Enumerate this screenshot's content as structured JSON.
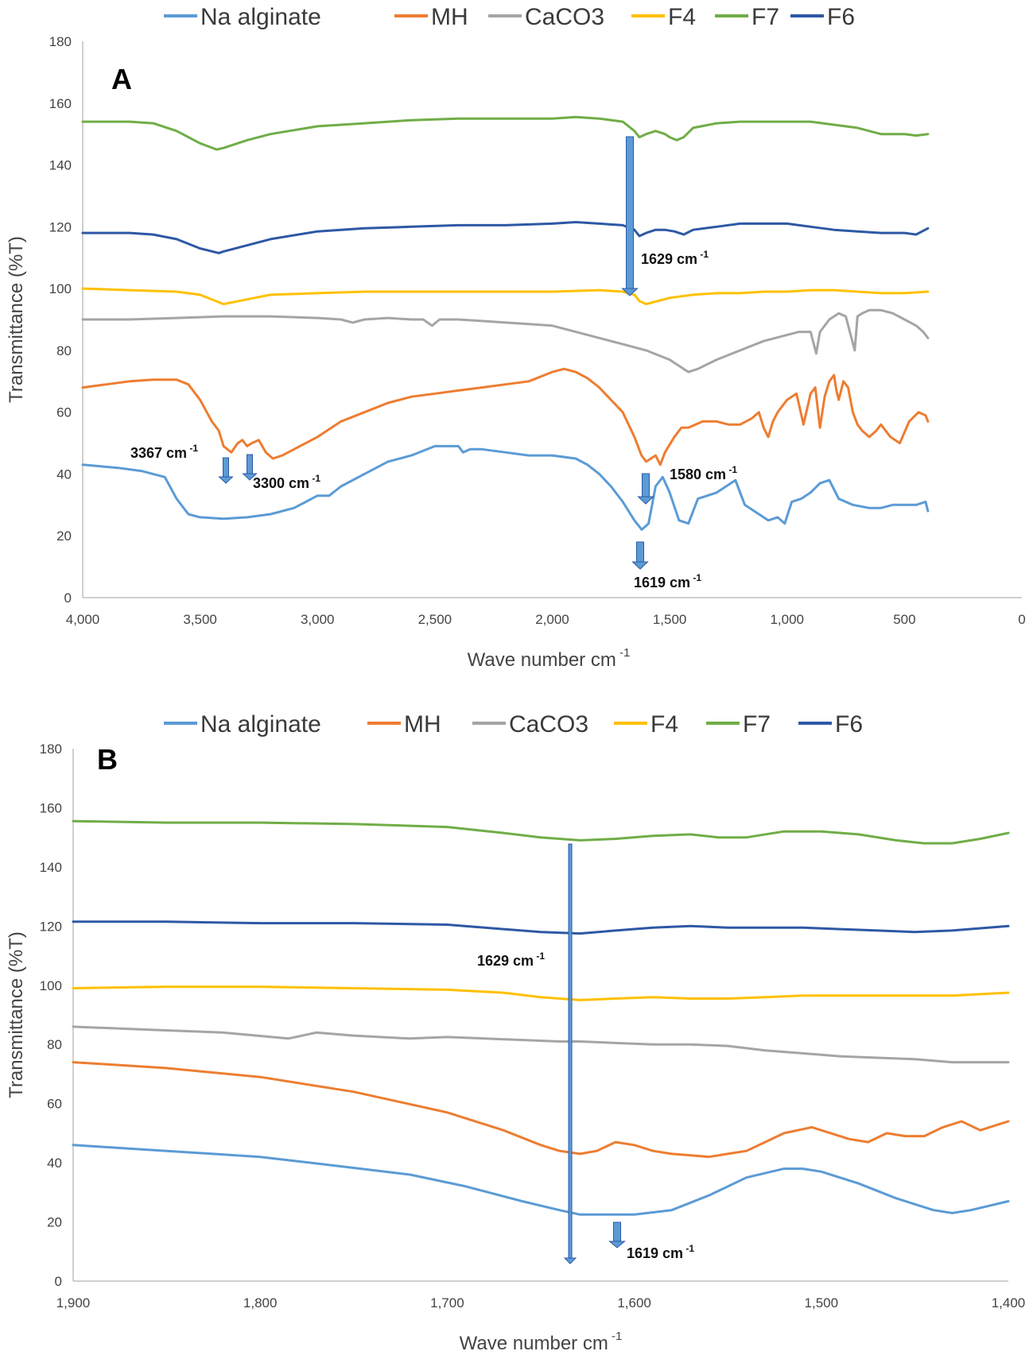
{
  "chart_data": [
    {
      "type": "line",
      "panel": "A",
      "xlabel": "Wave number cm",
      "xlabel_sup": "-1",
      "ylabel": "Transmittance  (%T)",
      "xlim": [
        4000,
        0
      ],
      "ylim": [
        0,
        180
      ],
      "xticks": [
        4000,
        3500,
        3000,
        2500,
        2000,
        1500,
        1000,
        500,
        0
      ],
      "xtick_labels": [
        "4,000",
        "3,500",
        "3,000",
        "2,500",
        "2,000",
        "1,500",
        "1,000",
        "500",
        "0"
      ],
      "yticks": [
        0,
        20,
        40,
        60,
        80,
        100,
        120,
        140,
        160,
        180
      ],
      "ytick_labels": [
        "0",
        "20",
        "40",
        "60",
        "80",
        "100",
        "120",
        "140",
        "160",
        "180"
      ],
      "legend_position": "top",
      "series": [
        {
          "name": "Na alginate",
          "color": "#5b9bd5",
          "x": [
            4000,
            3850,
            3750,
            3650,
            3600,
            3550,
            3500,
            3400,
            3300,
            3200,
            3100,
            3000,
            2950,
            2900,
            2800,
            2700,
            2600,
            2500,
            2400,
            2380,
            2350,
            2300,
            2200,
            2100,
            2000,
            1900,
            1850,
            1800,
            1750,
            1700,
            1650,
            1619,
            1590,
            1560,
            1530,
            1500,
            1460,
            1420,
            1380,
            1340,
            1300,
            1260,
            1220,
            1180,
            1120,
            1080,
            1040,
            1010,
            980,
            940,
            900,
            860,
            820,
            780,
            720,
            650,
            600,
            550,
            500,
            450,
            410,
            400
          ],
          "y": [
            43,
            42,
            41,
            39,
            32,
            27,
            26,
            25.5,
            26,
            27,
            29,
            33,
            33,
            36,
            40,
            44,
            46,
            49,
            49,
            47,
            48,
            48,
            47,
            46,
            46,
            45,
            43,
            40,
            36,
            31,
            25,
            22,
            24,
            36,
            39,
            34,
            25,
            24,
            32,
            33,
            34,
            36,
            38,
            30,
            27,
            25,
            26,
            24,
            31,
            32,
            34,
            37,
            38,
            32,
            30,
            29,
            29,
            30,
            30,
            30,
            31,
            28
          ]
        },
        {
          "name": "MH",
          "color": "#ed7d31",
          "x": [
            4000,
            3900,
            3800,
            3700,
            3600,
            3550,
            3500,
            3450,
            3420,
            3400,
            3367,
            3340,
            3320,
            3300,
            3280,
            3250,
            3220,
            3190,
            3150,
            3100,
            3000,
            2900,
            2800,
            2700,
            2600,
            2500,
            2400,
            2300,
            2200,
            2100,
            2000,
            1950,
            1900,
            1850,
            1800,
            1750,
            1700,
            1650,
            1620,
            1600,
            1580,
            1560,
            1540,
            1520,
            1480,
            1450,
            1420,
            1390,
            1360,
            1300,
            1250,
            1200,
            1150,
            1120,
            1100,
            1080,
            1060,
            1040,
            1020,
            1000,
            960,
            930,
            900,
            880,
            860,
            840,
            820,
            800,
            790,
            780,
            760,
            740,
            720,
            700,
            680,
            650,
            620,
            600,
            560,
            520,
            480,
            440,
            410,
            400
          ],
          "y": [
            68,
            69,
            70,
            70.5,
            70.5,
            69,
            64,
            57,
            54,
            49,
            47,
            50,
            51,
            49,
            50,
            51,
            47,
            45,
            46,
            48,
            52,
            57,
            60,
            63,
            65,
            66,
            67,
            68,
            69,
            70,
            73,
            74,
            73,
            71,
            68,
            64,
            60,
            52,
            46,
            44,
            45,
            46,
            43,
            47,
            52,
            55,
            55,
            56,
            57,
            57,
            56,
            56,
            58,
            60,
            55,
            52,
            57,
            60,
            62,
            64,
            66,
            56,
            66,
            68,
            55,
            65,
            70,
            72,
            67,
            64,
            70,
            68,
            60,
            56,
            54,
            52,
            54,
            56,
            52,
            50,
            57,
            60,
            59,
            57
          ]
        },
        {
          "name": "CaCO3",
          "color": "#a5a5a5",
          "x": [
            4000,
            3800,
            3600,
            3400,
            3200,
            3000,
            2900,
            2850,
            2800,
            2700,
            2600,
            2550,
            2512,
            2480,
            2400,
            2300,
            2200,
            2100,
            2000,
            1900,
            1800,
            1700,
            1600,
            1500,
            1420,
            1380,
            1300,
            1200,
            1100,
            1000,
            950,
            900,
            876,
            860,
            820,
            780,
            750,
            712,
            700,
            680,
            650,
            600,
            550,
            500,
            450,
            420,
            400
          ],
          "y": [
            90,
            90,
            90.5,
            91,
            91,
            90.5,
            90,
            89,
            90,
            90.5,
            90,
            90,
            88,
            90,
            90,
            89.5,
            89,
            88.5,
            88,
            86,
            84,
            82,
            80,
            77,
            73,
            74,
            77,
            80,
            83,
            85,
            86,
            86,
            79,
            86,
            90,
            92,
            91,
            80,
            91,
            92,
            93,
            93,
            92,
            90,
            88,
            86,
            84
          ]
        },
        {
          "name": "F4",
          "color": "#ffc000",
          "x": [
            4000,
            3800,
            3600,
            3500,
            3400,
            3300,
            3200,
            3000,
            2800,
            2600,
            2400,
            2200,
            2000,
            1800,
            1700,
            1650,
            1629,
            1600,
            1550,
            1500,
            1400,
            1300,
            1200,
            1100,
            1000,
            900,
            800,
            700,
            600,
            500,
            400
          ],
          "y": [
            100,
            99.5,
            99,
            98,
            95,
            96.5,
            98,
            98.5,
            99,
            99,
            99,
            99,
            99,
            99.5,
            99,
            98,
            96,
            95,
            96,
            97,
            98,
            98.5,
            98.5,
            99,
            99,
            99.5,
            99.5,
            99,
            98.5,
            98.5,
            99
          ]
        },
        {
          "name": "F7",
          "color": "#70ad47",
          "x": [
            4000,
            3800,
            3700,
            3600,
            3500,
            3430,
            3400,
            3300,
            3200,
            3000,
            2800,
            2600,
            2400,
            2200,
            2000,
            1900,
            1800,
            1700,
            1650,
            1629,
            1600,
            1560,
            1520,
            1500,
            1470,
            1440,
            1400,
            1300,
            1200,
            1100,
            1000,
            900,
            800,
            700,
            600,
            500,
            450,
            400
          ],
          "y": [
            154,
            154,
            153.5,
            151,
            147,
            145,
            145.5,
            148,
            150,
            152.5,
            153.5,
            154.5,
            155,
            155,
            155,
            155.5,
            155,
            154,
            151,
            149,
            150,
            151,
            150,
            149,
            148,
            149,
            152,
            153.5,
            154,
            154,
            154,
            154,
            153,
            152,
            150,
            150,
            149.5,
            150
          ]
        },
        {
          "name": "F6",
          "color": "#2e58a5",
          "x": [
            4000,
            3800,
            3700,
            3600,
            3500,
            3420,
            3400,
            3300,
            3200,
            3000,
            2800,
            2600,
            2400,
            2200,
            2000,
            1900,
            1800,
            1700,
            1650,
            1629,
            1600,
            1560,
            1520,
            1480,
            1440,
            1400,
            1300,
            1200,
            1100,
            1000,
            900,
            800,
            700,
            600,
            500,
            450,
            400
          ],
          "y": [
            118,
            118,
            117.5,
            116,
            113,
            111.5,
            112,
            114,
            116,
            118.5,
            119.5,
            120,
            120.5,
            120.5,
            121,
            121.5,
            121,
            120.5,
            119,
            117,
            118,
            119,
            119,
            118.5,
            117.5,
            119,
            120,
            121,
            121,
            121,
            120,
            119,
            118.5,
            118,
            118,
            117.5,
            119.5
          ]
        }
      ],
      "annotations": [
        {
          "text": "1629 cm",
          "sup": "-1"
        },
        {
          "text": "3367 cm",
          "sup": "-1"
        },
        {
          "text": "3300 cm",
          "sup": "-1"
        },
        {
          "text": "1580 cm",
          "sup": "-1"
        },
        {
          "text": "1619 cm",
          "sup": "-1"
        }
      ]
    },
    {
      "type": "line",
      "panel": "B",
      "xlabel": "Wave number cm",
      "xlabel_sup": "-1",
      "ylabel": "Transmittance  (%T)",
      "xlim": [
        1900,
        1400
      ],
      "ylim": [
        0,
        180
      ],
      "xticks": [
        1900,
        1800,
        1700,
        1600,
        1500,
        1400
      ],
      "xtick_labels": [
        "1,900",
        "1,800",
        "1,700",
        "1,600",
        "1,500",
        "1,400"
      ],
      "yticks": [
        0,
        20,
        40,
        60,
        80,
        100,
        120,
        140,
        160,
        180
      ],
      "ytick_labels": [
        "0",
        "20",
        "40",
        "60",
        "80",
        "100",
        "120",
        "140",
        "160",
        "180"
      ],
      "legend_position": "top",
      "series": [
        {
          "name": "Na alginate",
          "color": "#5b9bd5",
          "x": [
            1900,
            1850,
            1800,
            1760,
            1720,
            1690,
            1660,
            1640,
            1629,
            1600,
            1580,
            1560,
            1540,
            1520,
            1510,
            1500,
            1480,
            1460,
            1440,
            1430,
            1420,
            1400
          ],
          "y": [
            46,
            44,
            42,
            39,
            36,
            32,
            27,
            24,
            22.5,
            22.5,
            24,
            29,
            35,
            38,
            38,
            37,
            33,
            28,
            24,
            23,
            24,
            27
          ]
        },
        {
          "name": "MH",
          "color": "#ed7d31",
          "x": [
            1900,
            1850,
            1800,
            1750,
            1700,
            1670,
            1650,
            1640,
            1629,
            1620,
            1610,
            1600,
            1590,
            1580,
            1570,
            1560,
            1550,
            1540,
            1530,
            1520,
            1505,
            1495,
            1485,
            1475,
            1465,
            1455,
            1445,
            1435,
            1425,
            1415,
            1405,
            1400
          ],
          "y": [
            74,
            72,
            69,
            64,
            57,
            51,
            46,
            44,
            43,
            44,
            47,
            46,
            44,
            43,
            42.5,
            42,
            43,
            44,
            47,
            50,
            52,
            50,
            48,
            47,
            50,
            49,
            49,
            52,
            54,
            51,
            53,
            54
          ]
        },
        {
          "name": "CaCO3",
          "color": "#a5a5a5",
          "x": [
            1900,
            1860,
            1820,
            1785,
            1770,
            1750,
            1720,
            1700,
            1680,
            1660,
            1640,
            1629,
            1610,
            1590,
            1570,
            1550,
            1530,
            1510,
            1490,
            1470,
            1450,
            1430,
            1400
          ],
          "y": [
            86,
            85,
            84,
            82,
            84,
            83,
            82,
            82.5,
            82,
            81.5,
            81,
            81,
            80.5,
            80,
            80,
            79.5,
            78,
            77,
            76,
            75.5,
            75,
            74,
            74
          ]
        },
        {
          "name": "F4",
          "color": "#ffc000",
          "x": [
            1900,
            1850,
            1800,
            1750,
            1700,
            1670,
            1650,
            1629,
            1610,
            1590,
            1570,
            1550,
            1530,
            1510,
            1490,
            1470,
            1450,
            1430,
            1400
          ],
          "y": [
            99,
            99.5,
            99.5,
            99,
            98.5,
            97.5,
            96,
            95,
            95.5,
            96,
            95.5,
            95.5,
            96,
            96.5,
            96.5,
            96.5,
            96.5,
            96.5,
            97.5
          ]
        },
        {
          "name": "F7",
          "color": "#70ad47",
          "x": [
            1900,
            1850,
            1800,
            1750,
            1700,
            1670,
            1650,
            1629,
            1610,
            1590,
            1570,
            1555,
            1540,
            1520,
            1500,
            1480,
            1460,
            1445,
            1430,
            1415,
            1400
          ],
          "y": [
            155.5,
            155,
            155,
            154.5,
            153.5,
            151.5,
            150,
            149,
            149.5,
            150.5,
            151,
            150,
            150,
            152,
            152,
            151,
            149,
            148,
            148,
            149.5,
            151.5
          ]
        },
        {
          "name": "F6",
          "color": "#2e58a5",
          "x": [
            1900,
            1850,
            1800,
            1750,
            1700,
            1670,
            1650,
            1629,
            1610,
            1590,
            1570,
            1550,
            1530,
            1510,
            1490,
            1470,
            1450,
            1430,
            1400
          ],
          "y": [
            121.5,
            121.5,
            121,
            121,
            120.5,
            119,
            118,
            117.5,
            118.5,
            119.5,
            120,
            119.5,
            119.5,
            119.5,
            119,
            118.5,
            118,
            118.5,
            120
          ]
        }
      ],
      "annotations": [
        {
          "text": "1629 cm",
          "sup": "-1"
        },
        {
          "text": "1619 cm",
          "sup": "-1"
        }
      ]
    }
  ]
}
